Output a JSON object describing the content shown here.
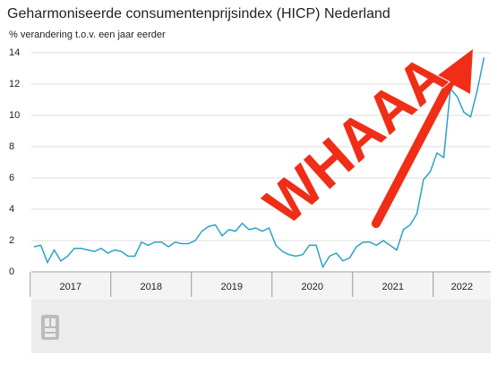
{
  "chart_data": {
    "type": "line",
    "title": "Geharmoniseerde consumentenprijsindex (HICP) Nederland",
    "subtitle": "% verandering t.o.v. een jaar eerder",
    "annotation": "WHAAA",
    "annotation_color": "#f02d17",
    "categories": [
      "2017",
      null,
      null,
      null,
      null,
      null,
      null,
      null,
      null,
      null,
      null,
      null,
      "2018",
      null,
      null,
      null,
      null,
      null,
      null,
      null,
      null,
      null,
      null,
      null,
      "2019",
      null,
      null,
      null,
      null,
      null,
      null,
      null,
      null,
      null,
      null,
      null,
      "2020",
      null,
      null,
      null,
      null,
      null,
      null,
      null,
      null,
      null,
      null,
      null,
      "2021",
      null,
      null,
      null,
      null,
      null,
      null,
      null,
      null,
      null,
      null,
      null,
      "2022",
      null,
      null,
      null,
      null,
      null,
      null,
      null
    ],
    "series": [
      {
        "color": "#2aa3c4",
        "values": [
          1.6,
          1.7,
          0.6,
          1.4,
          0.7,
          1.0,
          1.5,
          1.5,
          1.4,
          1.3,
          1.5,
          1.2,
          1.4,
          1.3,
          1.0,
          1.0,
          1.9,
          1.7,
          1.9,
          1.9,
          1.6,
          1.9,
          1.8,
          1.8,
          2.0,
          2.6,
          2.9,
          3.0,
          2.3,
          2.7,
          2.6,
          3.1,
          2.7,
          2.8,
          2.6,
          2.8,
          1.7,
          1.3,
          1.1,
          1.0,
          1.1,
          1.7,
          1.7,
          0.3,
          1.0,
          1.2,
          0.7,
          0.9,
          1.6,
          1.9,
          1.9,
          1.7,
          2.0,
          1.7,
          1.4,
          2.7,
          3.0,
          3.7,
          5.9,
          6.4,
          7.6,
          7.3,
          11.7,
          11.2,
          10.2,
          9.9,
          11.6,
          13.7
        ]
      }
    ],
    "ylim": [
      0,
      14
    ],
    "yticks": [
      0,
      2,
      4,
      6,
      8,
      10,
      12,
      14
    ],
    "grid": true
  }
}
